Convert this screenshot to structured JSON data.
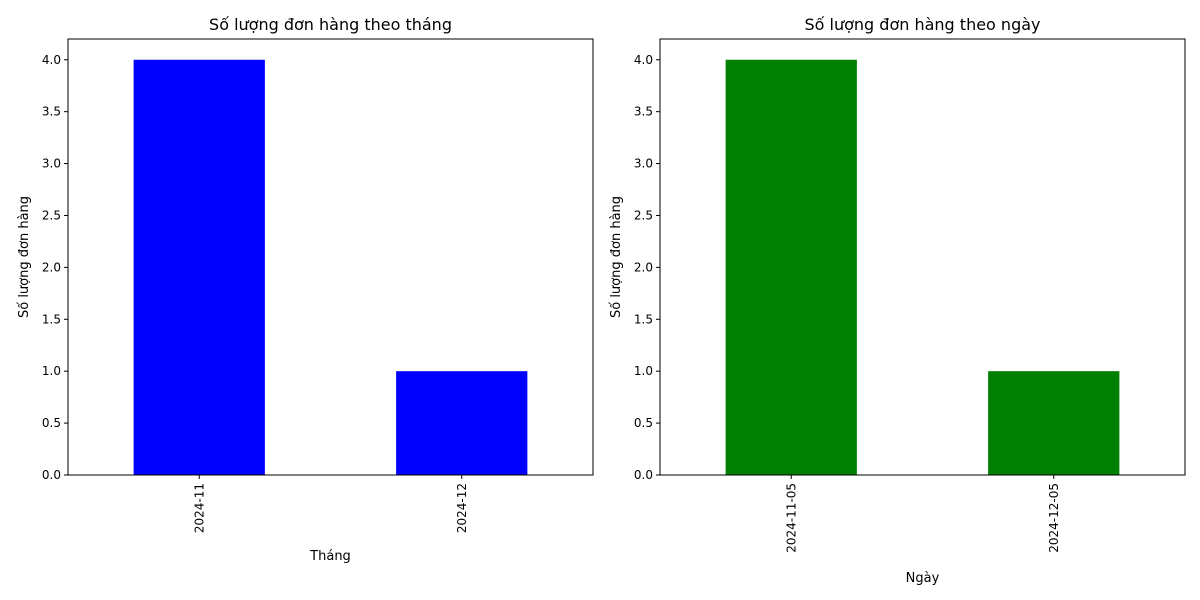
{
  "chart_data": [
    {
      "type": "bar",
      "title": "Số lượng đơn hàng theo tháng",
      "xlabel": "Tháng",
      "ylabel": "Số lượng đơn hàng",
      "categories": [
        "2024-11",
        "2024-12"
      ],
      "values": [
        4,
        1
      ],
      "ylim": [
        0,
        4.2
      ],
      "yticks": [
        "0.0",
        "0.5",
        "1.0",
        "1.5",
        "2.0",
        "2.5",
        "3.0",
        "3.5",
        "4.0"
      ],
      "bar_color": "#0000ff",
      "grid": false,
      "legend": "none"
    },
    {
      "type": "bar",
      "title": "Số lượng đơn hàng theo ngày",
      "xlabel": "Ngày",
      "ylabel": "Số lượng đơn hàng",
      "categories": [
        "2024-11-05",
        "2024-12-05"
      ],
      "values": [
        4,
        1
      ],
      "ylim": [
        0,
        4.2
      ],
      "yticks": [
        "0.0",
        "0.5",
        "1.0",
        "1.5",
        "2.0",
        "2.5",
        "3.0",
        "3.5",
        "4.0"
      ],
      "bar_color": "#008000",
      "grid": false,
      "legend": "none"
    }
  ]
}
